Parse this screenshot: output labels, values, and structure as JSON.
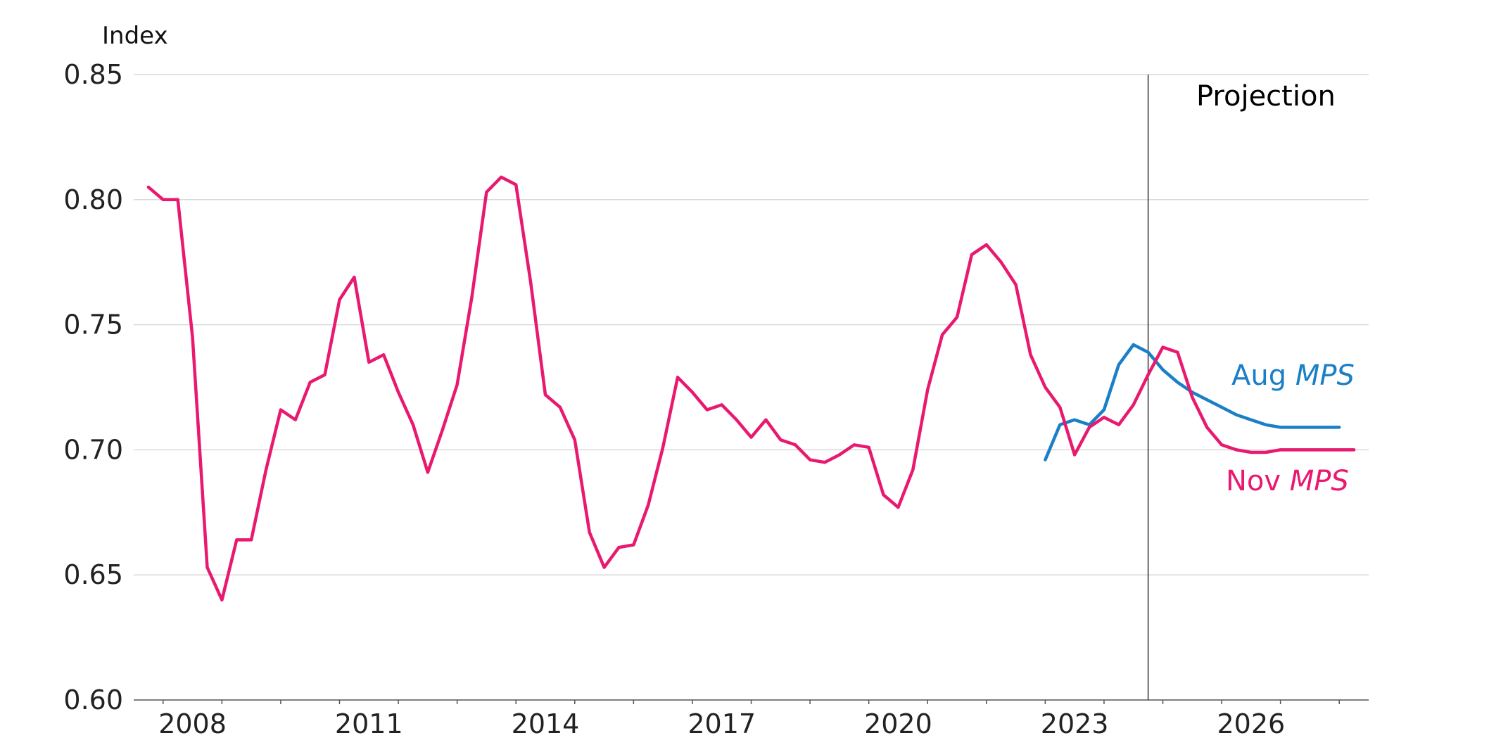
{
  "chart_data": {
    "type": "line",
    "ylabel": "Index",
    "ylim": [
      0.6,
      0.85
    ],
    "yticks": [
      "0.60",
      "0.65",
      "0.70",
      "0.75",
      "0.80",
      "0.85"
    ],
    "xlim": [
      2007.5,
      2028.5
    ],
    "xticks": [
      "2008",
      "2011",
      "2014",
      "2017",
      "2020",
      "2023",
      "2026"
    ],
    "projection_start": 2024.75,
    "projection_label": "Projection",
    "grid": true,
    "colors": {
      "aug": "#1a7fc7",
      "nov": "#e8196f"
    },
    "series": [
      {
        "name": "Aug MPS",
        "label_prefix": "Aug ",
        "label_emph": "MPS",
        "color": "#1a7fc7",
        "x": [
          2023.0,
          2023.25,
          2023.5,
          2023.75,
          2024.0,
          2024.25,
          2024.5,
          2024.75,
          2025.0,
          2025.25,
          2025.5,
          2025.75,
          2026.0,
          2026.25,
          2026.5,
          2026.75,
          2027.0,
          2027.25,
          2027.5,
          2027.75,
          2028.0
        ],
        "values": [
          0.696,
          0.71,
          0.712,
          0.71,
          0.716,
          0.734,
          0.742,
          0.739,
          0.732,
          0.727,
          0.723,
          0.72,
          0.717,
          0.714,
          0.712,
          0.71,
          0.709,
          0.709,
          0.709,
          0.709,
          0.709
        ]
      },
      {
        "name": "Nov MPS",
        "label_prefix": "Nov ",
        "label_emph": "MPS",
        "color": "#e8196f",
        "x": [
          2007.75,
          2008.0,
          2008.25,
          2008.5,
          2008.75,
          2009.0,
          2009.25,
          2009.5,
          2009.75,
          2010.0,
          2010.25,
          2010.5,
          2010.75,
          2011.0,
          2011.25,
          2011.5,
          2011.75,
          2012.0,
          2012.25,
          2012.5,
          2012.75,
          2013.0,
          2013.25,
          2013.5,
          2013.75,
          2014.0,
          2014.25,
          2014.5,
          2014.75,
          2015.0,
          2015.25,
          2015.5,
          2015.75,
          2016.0,
          2016.25,
          2016.5,
          2016.75,
          2017.0,
          2017.25,
          2017.5,
          2017.75,
          2018.0,
          2018.25,
          2018.5,
          2018.75,
          2019.0,
          2019.25,
          2019.5,
          2019.75,
          2020.0,
          2020.25,
          2020.5,
          2020.75,
          2021.0,
          2021.25,
          2021.5,
          2021.75,
          2022.0,
          2022.25,
          2022.5,
          2022.75,
          2023.0,
          2023.25,
          2023.5,
          2023.75,
          2024.0,
          2024.25,
          2024.5,
          2024.75,
          2025.0,
          2025.25,
          2025.5,
          2025.75,
          2026.0,
          2026.25,
          2026.5,
          2026.75,
          2027.0,
          2027.25,
          2027.5,
          2027.75,
          2028.0,
          2028.25
        ],
        "values": [
          0.805,
          0.8,
          0.8,
          0.745,
          0.653,
          0.64,
          0.664,
          0.664,
          0.692,
          0.716,
          0.712,
          0.727,
          0.73,
          0.76,
          0.769,
          0.735,
          0.738,
          0.723,
          0.71,
          0.691,
          0.708,
          0.726,
          0.761,
          0.803,
          0.809,
          0.806,
          0.767,
          0.722,
          0.717,
          0.704,
          0.667,
          0.653,
          0.661,
          0.662,
          0.678,
          0.701,
          0.729,
          0.723,
          0.716,
          0.718,
          0.712,
          0.705,
          0.712,
          0.704,
          0.702,
          0.696,
          0.695,
          0.698,
          0.702,
          0.701,
          0.682,
          0.677,
          0.692,
          0.724,
          0.746,
          0.753,
          0.778,
          0.782,
          0.775,
          0.766,
          0.738,
          0.725,
          0.717,
          0.698,
          0.709,
          0.713,
          0.71,
          0.718,
          0.73,
          0.741,
          0.739,
          0.721,
          0.709,
          0.702,
          0.7,
          0.699,
          0.699,
          0.7,
          0.7,
          0.7,
          0.7,
          0.7,
          0.7
        ]
      }
    ]
  }
}
